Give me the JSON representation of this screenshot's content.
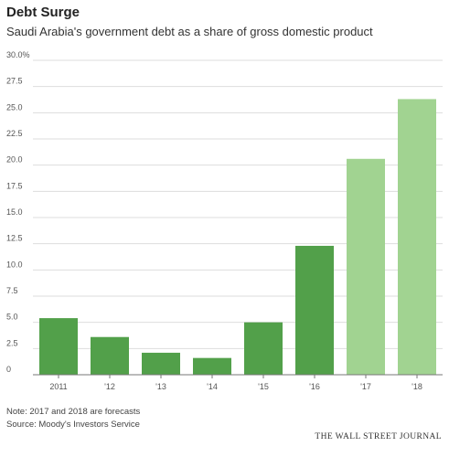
{
  "header": {
    "title": "Debt Surge",
    "subtitle": "Saudi Arabia's government debt as a share of gross domestic product"
  },
  "footer": {
    "note": "Note: 2017 and 2018 are forecasts",
    "source": "Source: Moody's Investors Service",
    "brand": "THE WALL STREET JOURNAL"
  },
  "colors": {
    "actual": "#52a04a",
    "forecast": "#a1d391",
    "grid": "#dddddd",
    "axis": "#777777"
  },
  "chart_data": {
    "type": "bar",
    "categories": [
      "2011",
      "'12",
      "'13",
      "'14",
      "'15",
      "'16",
      "'17",
      "'18"
    ],
    "values": [
      5.4,
      3.6,
      2.1,
      1.6,
      5.0,
      12.3,
      20.6,
      26.3
    ],
    "forecast": [
      false,
      false,
      false,
      false,
      false,
      false,
      true,
      true
    ],
    "ylim": [
      0,
      30
    ],
    "yticks": [
      0,
      2.5,
      5.0,
      7.5,
      10.0,
      12.5,
      15.0,
      17.5,
      20.0,
      22.5,
      25.0,
      27.5,
      30.0
    ],
    "ytick_labels": [
      "0",
      "2.5",
      "5.0",
      "7.5",
      "10.0",
      "12.5",
      "15.0",
      "17.5",
      "20.0",
      "22.5",
      "25.0",
      "27.5",
      "30.0%"
    ],
    "title": "Debt Surge",
    "subtitle": "Saudi Arabia's government debt as a share of gross domestic product",
    "grid": true
  }
}
